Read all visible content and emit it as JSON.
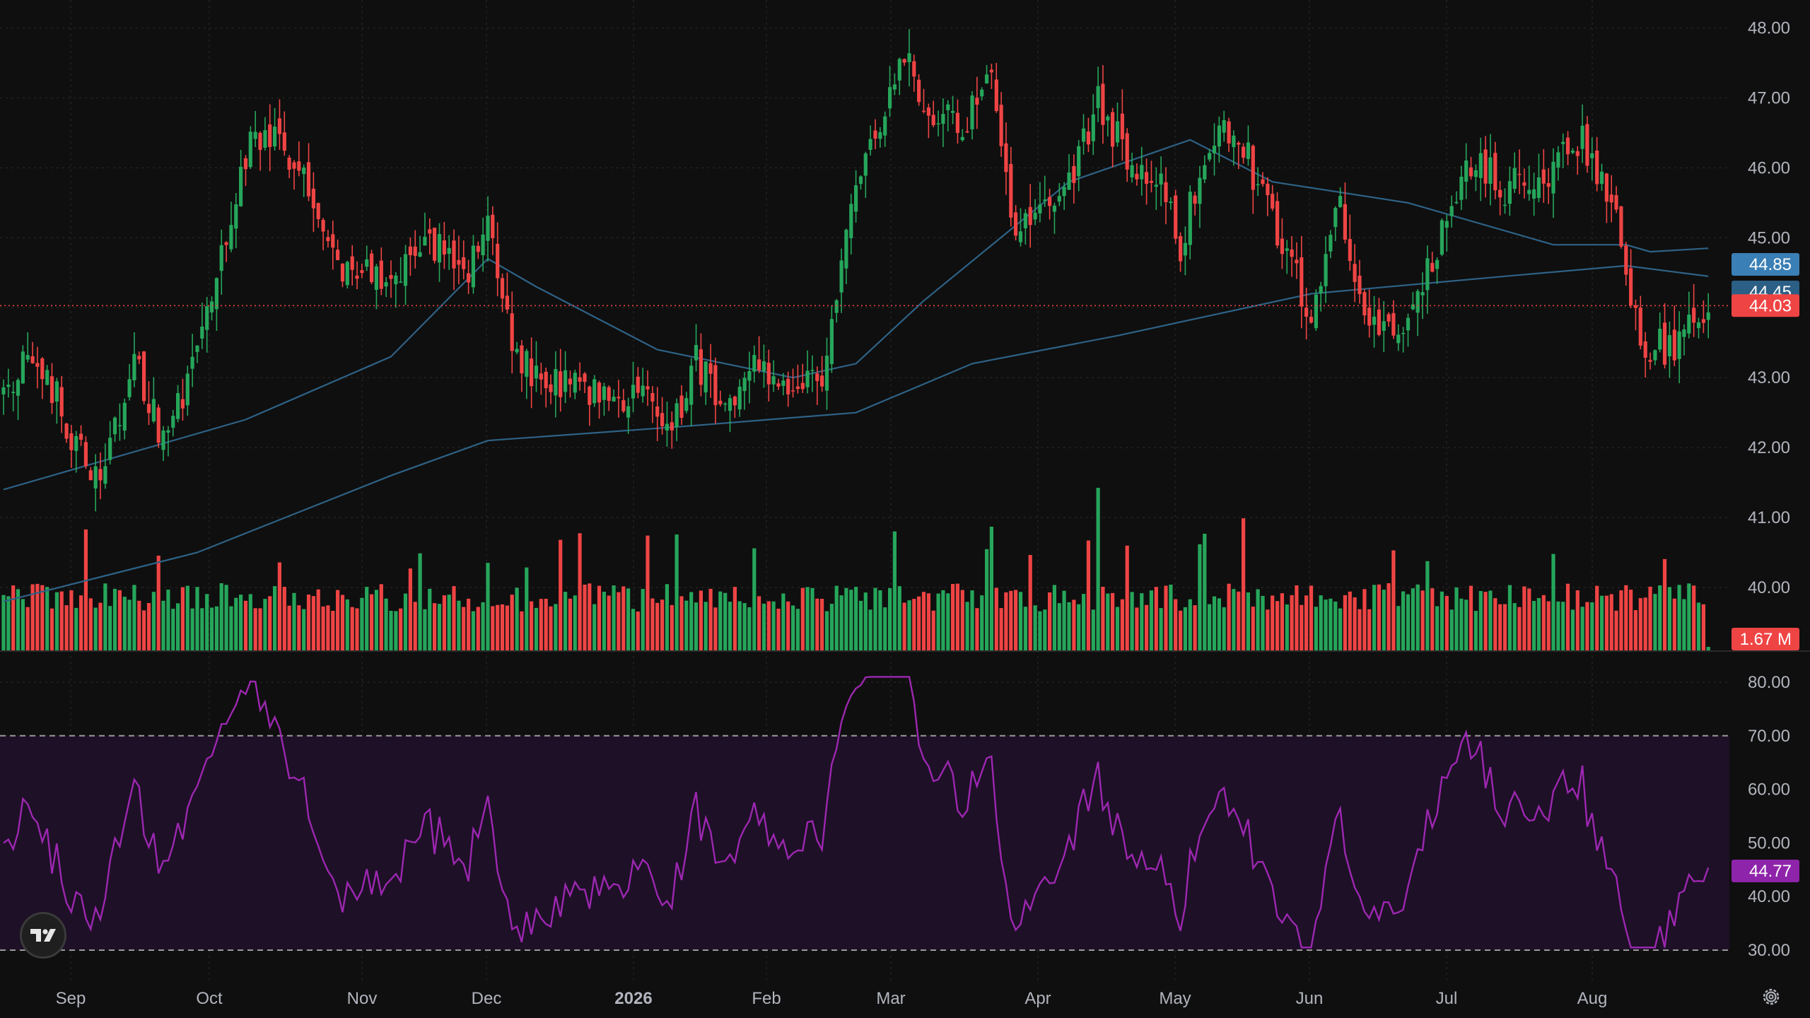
{
  "chart_data": [
    {
      "type": "candlestick",
      "x_ticks": [
        "Sep",
        "Oct",
        "Nov",
        "Dec",
        "2026",
        "Feb",
        "Mar",
        "Apr",
        "May",
        "Jun",
        "Jul",
        "Aug"
      ],
      "y_ticks": [
        "48.00",
        "47.00",
        "46.00",
        "45.00",
        "44.00",
        "43.00",
        "42.00",
        "41.00",
        "40.00"
      ],
      "ylim": [
        39.1,
        48.4
      ],
      "grid": true,
      "last_price": "44.03",
      "ma_labels": [
        "44.85",
        "44.45"
      ],
      "anchors": [
        [
          0,
          43.0
        ],
        [
          8,
          43.2
        ],
        [
          15,
          42.0
        ],
        [
          20,
          41.4
        ],
        [
          27,
          43.2
        ],
        [
          33,
          42.1
        ],
        [
          40,
          43.3
        ],
        [
          46,
          45.0
        ],
        [
          51,
          46.3
        ],
        [
          56,
          46.5
        ],
        [
          62,
          45.9
        ],
        [
          68,
          44.6
        ],
        [
          75,
          44.6
        ],
        [
          82,
          44.4
        ],
        [
          88,
          45.0
        ],
        [
          95,
          44.3
        ],
        [
          100,
          45.1
        ],
        [
          105,
          43.4
        ],
        [
          112,
          42.9
        ],
        [
          120,
          42.8
        ],
        [
          128,
          42.7
        ],
        [
          133,
          43.0
        ],
        [
          138,
          42.2
        ],
        [
          143,
          43.2
        ],
        [
          149,
          42.7
        ],
        [
          156,
          43.2
        ],
        [
          163,
          42.6
        ],
        [
          170,
          43.2
        ],
        [
          176,
          45.8
        ],
        [
          181,
          46.4
        ],
        [
          186,
          47.6
        ],
        [
          192,
          46.8
        ],
        [
          198,
          46.6
        ],
        [
          204,
          47.4
        ],
        [
          209,
          44.8
        ],
        [
          214,
          45.6
        ],
        [
          220,
          45.8
        ],
        [
          226,
          47.0
        ],
        [
          232,
          46.1
        ],
        [
          238,
          45.9
        ],
        [
          243,
          44.9
        ],
        [
          249,
          46.4
        ],
        [
          254,
          46.6
        ],
        [
          260,
          45.6
        ],
        [
          265,
          44.7
        ],
        [
          270,
          44.0
        ],
        [
          276,
          45.5
        ],
        [
          281,
          44.0
        ],
        [
          287,
          43.6
        ],
        [
          293,
          44.3
        ],
        [
          298,
          45.3
        ],
        [
          304,
          46.2
        ],
        [
          310,
          45.7
        ],
        [
          317,
          45.8
        ],
        [
          322,
          46.1
        ],
        [
          326,
          46.4
        ],
        [
          332,
          45.6
        ],
        [
          338,
          43.5
        ],
        [
          344,
          43.4
        ],
        [
          352,
          44.1
        ]
      ],
      "series": [
        {
          "name": "",
          "role": "upper-moving-average",
          "points": [
            [
              0,
              41.4
            ],
            [
              50,
              42.4
            ],
            [
              80,
              43.3
            ],
            [
              100,
              44.7
            ],
            [
              110,
              44.3
            ],
            [
              135,
              43.4
            ],
            [
              163,
              43.0
            ],
            [
              176,
              43.2
            ],
            [
              190,
              44.1
            ],
            [
              220,
              45.8
            ],
            [
              245,
              46.4
            ],
            [
              262,
              45.8
            ],
            [
              290,
              45.5
            ],
            [
              320,
              44.9
            ],
            [
              335,
              44.9
            ],
            [
              340,
              44.8
            ],
            [
              352,
              44.85
            ]
          ]
        },
        {
          "name": "",
          "role": "lower-moving-average",
          "points": [
            [
              0,
              39.8
            ],
            [
              40,
              40.5
            ],
            [
              80,
              41.6
            ],
            [
              100,
              42.1
            ],
            [
              140,
              42.3
            ],
            [
              176,
              42.5
            ],
            [
              200,
              43.2
            ],
            [
              230,
              43.6
            ],
            [
              270,
              44.2
            ],
            [
              310,
              44.45
            ],
            [
              335,
              44.6
            ],
            [
              352,
              44.45
            ]
          ]
        }
      ]
    },
    {
      "type": "bar",
      "name": "volume",
      "last_label": "1.67 M",
      "colors": {
        "up": "#26a65b",
        "down": "#ef4444"
      }
    },
    {
      "type": "line",
      "name": "oscillator",
      "y_ticks": [
        "80.00",
        "70.00",
        "60.00",
        "50.00",
        "40.00",
        "30.00"
      ],
      "ylim": [
        24,
        84
      ],
      "band": [
        30,
        70
      ],
      "last_label": "44.77",
      "color": "#9c27b0"
    }
  ],
  "colors": {
    "up": "#26a65b",
    "down": "#ef4444",
    "ma": "#2e6286",
    "rsi": "#9c27b0",
    "rsi_band": "#1e1027",
    "grid": "#232323",
    "bg": "#0f0f0f",
    "axis_text": "#b2b5be",
    "badge_upper": "#3a7fb5",
    "badge_lower": "#2b5f85",
    "badge_price": "#ef4444",
    "badge_rsi": "#8e24aa"
  },
  "icons": {
    "logo": "tradingview-logo-icon",
    "settings": "gear-icon"
  }
}
